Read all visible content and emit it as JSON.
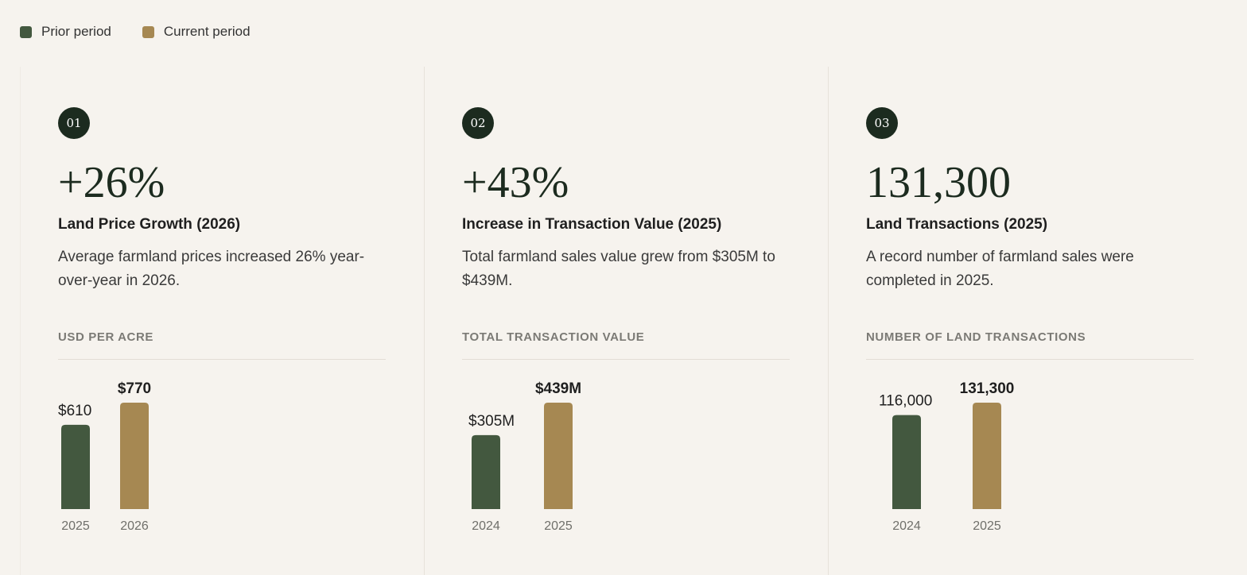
{
  "legend": {
    "prior_label": "Prior period",
    "current_label": "Current period",
    "prior_color": "#43583f",
    "current_color": "#a68852"
  },
  "cards": [
    {
      "number": "01",
      "big_value": "+26%",
      "title": "Land Price Growth (2026)",
      "description": "Average farmland prices increased 26% year-over-year in 2026.",
      "chart_label": "USD PER ACRE"
    },
    {
      "number": "02",
      "big_value": "+43%",
      "title": "Increase in Transaction Value (2025)",
      "description": "Total farmland sales value grew from $305M to $439M.",
      "chart_label": "TOTAL TRANSACTION VALUE"
    },
    {
      "number": "03",
      "big_value": "131,300",
      "title": "Land Transactions (2025)",
      "description": "A record number of farmland sales were completed in 2025.",
      "chart_label": "NUMBER OF LAND TRANSACTIONS"
    }
  ],
  "chart_data": [
    {
      "type": "bar",
      "categories": [
        "2025",
        "2026"
      ],
      "values": [
        610,
        770
      ],
      "value_labels": [
        "$610",
        "$770"
      ],
      "series_roles": [
        "Prior period",
        "Current period"
      ],
      "ylabel": "USD PER ACRE"
    },
    {
      "type": "bar",
      "categories": [
        "2024",
        "2025"
      ],
      "values": [
        305,
        439
      ],
      "value_labels": [
        "$305M",
        "$439M"
      ],
      "series_roles": [
        "Prior period",
        "Current period"
      ],
      "ylabel": "TOTAL TRANSACTION VALUE"
    },
    {
      "type": "bar",
      "categories": [
        "2024",
        "2025"
      ],
      "values": [
        116000,
        131300
      ],
      "value_labels": [
        "116,000",
        "131,300"
      ],
      "series_roles": [
        "Prior period",
        "Current period"
      ],
      "ylabel": "NUMBER OF LAND TRANSACTIONS"
    }
  ]
}
